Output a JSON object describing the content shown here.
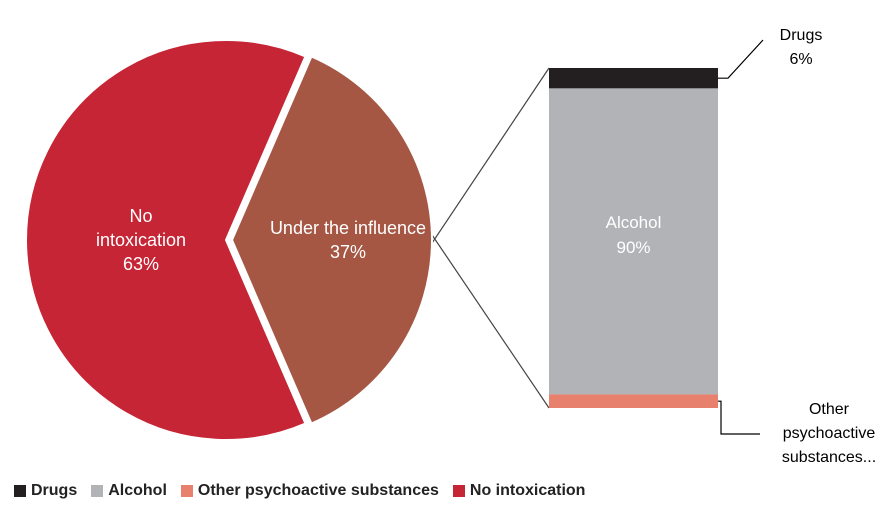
{
  "chart_data": {
    "type": "pie",
    "pie": {
      "slices": [
        {
          "label_lines": [
            "No",
            "intoxication",
            "63%"
          ],
          "value": 63,
          "color": "#C62535"
        },
        {
          "label_lines": [
            "Under the influence",
            "37%"
          ],
          "value": 37,
          "color": "#A65744"
        }
      ]
    },
    "breakdown": {
      "type": "stacked-bar",
      "of": "Under the influence",
      "segments": [
        {
          "name": "Drugs",
          "value": 6,
          "color": "#231F20",
          "label_lines": [
            "Drugs",
            "6%"
          ]
        },
        {
          "name": "Alcohol",
          "value": 90,
          "color": "#B1B3B6",
          "label_lines": [
            "Alcohol",
            "90%"
          ]
        },
        {
          "name": "Other psychoactive substances",
          "value": 4,
          "color": "#E8806E",
          "label_lines": [
            "Other",
            "psychoactive",
            "substances..."
          ]
        }
      ]
    },
    "legend": {
      "position": "bottom-left",
      "items": [
        {
          "label": "Drugs",
          "color": "#231F20"
        },
        {
          "label": "Alcohol",
          "color": "#B1B3B6"
        },
        {
          "label": "Other psychoactive substances",
          "color": "#E8806E"
        },
        {
          "label": "No intoxication",
          "color": "#C62535"
        }
      ]
    }
  }
}
